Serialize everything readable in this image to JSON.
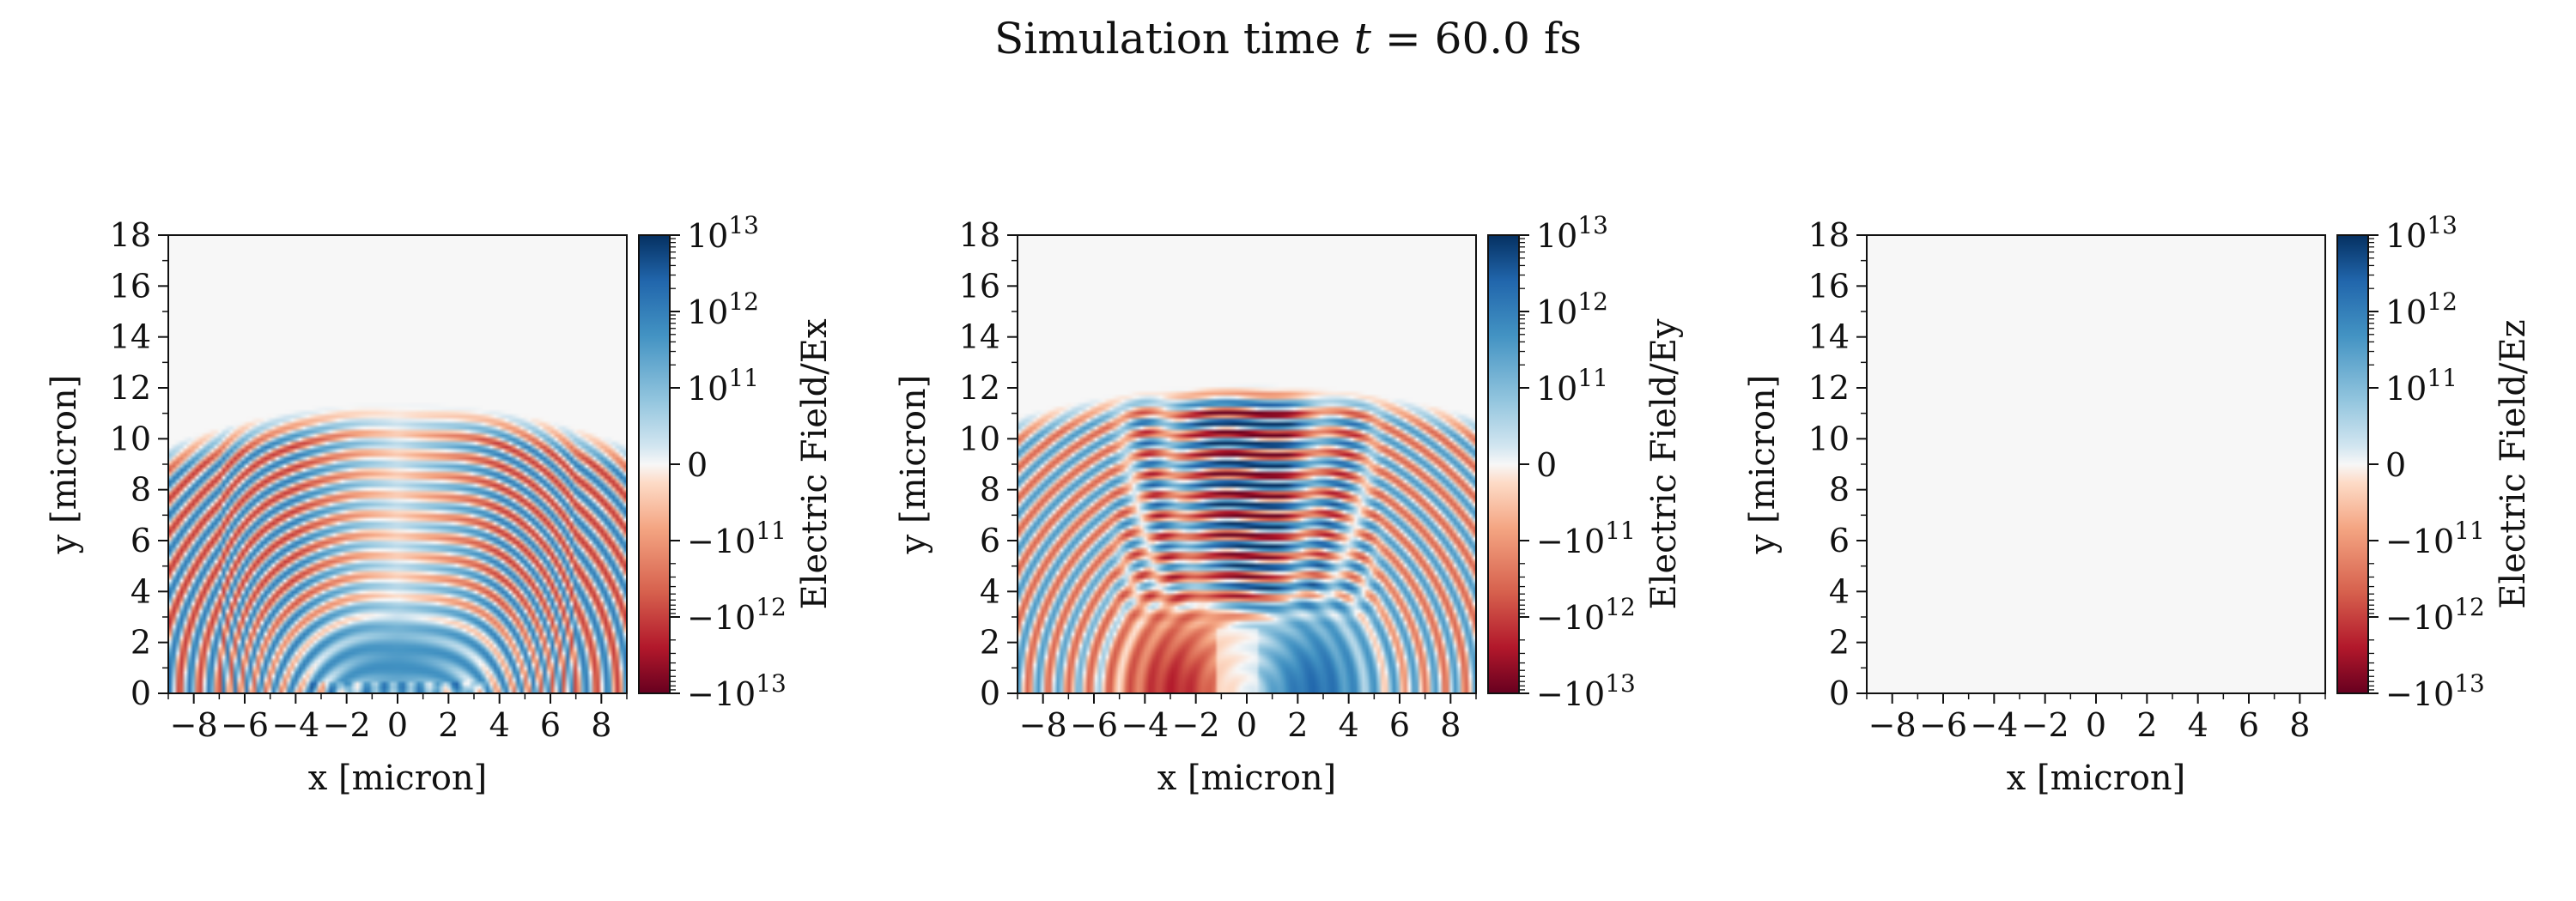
{
  "figure": {
    "suptitle_prefix": "Simulation time ",
    "suptitle_var": "t",
    "suptitle_suffix": " = 60.0 fs"
  },
  "chart_data": [
    {
      "type": "heatmap",
      "xlabel": "x [micron]",
      "ylabel": "y [micron]",
      "xlim": [
        -9,
        9
      ],
      "ylim": [
        0,
        18
      ],
      "xticks": [
        -8,
        -6,
        -4,
        -2,
        0,
        2,
        4,
        6,
        8
      ],
      "yticks": [
        0,
        2,
        4,
        6,
        8,
        10,
        12,
        14,
        16,
        18
      ],
      "colorbar": {
        "label": "Electric Field/Ex",
        "scale": "symlog",
        "colormap": "RdBu",
        "ticks": [
          {
            "value": 10000000000000.0,
            "base": "10",
            "exp": "13"
          },
          {
            "value": 1000000000000.0,
            "base": "10",
            "exp": "12"
          },
          {
            "value": 100000000000.0,
            "base": "10",
            "exp": "11"
          },
          {
            "value": 0,
            "base": "0",
            "exp": ""
          },
          {
            "value": -100000000000.0,
            "base": "−10",
            "exp": "11"
          },
          {
            "value": -1000000000000.0,
            "base": "−10",
            "exp": "12"
          },
          {
            "value": -10000000000000.0,
            "base": "−10",
            "exp": "13"
          }
        ]
      },
      "field": {
        "component": "Ex",
        "front_y_max": 11,
        "wavelength": 0.8,
        "peak_magnitude": 1000000000000.0,
        "pattern": "curved wavefronts, alternating sign, strongest near sides"
      }
    },
    {
      "type": "heatmap",
      "xlabel": "x [micron]",
      "ylabel": "y [micron]",
      "xlim": [
        -9,
        9
      ],
      "ylim": [
        0,
        18
      ],
      "xticks": [
        -8,
        -6,
        -4,
        -2,
        0,
        2,
        4,
        6,
        8
      ],
      "yticks": [
        0,
        2,
        4,
        6,
        8,
        10,
        12,
        14,
        16,
        18
      ],
      "colorbar": {
        "label": "Electric Field/Ey",
        "scale": "symlog",
        "colormap": "RdBu",
        "ticks": [
          {
            "value": 10000000000000.0,
            "base": "10",
            "exp": "13"
          },
          {
            "value": 1000000000000.0,
            "base": "10",
            "exp": "12"
          },
          {
            "value": 100000000000.0,
            "base": "10",
            "exp": "11"
          },
          {
            "value": 0,
            "base": "0",
            "exp": ""
          },
          {
            "value": -100000000000.0,
            "base": "−10",
            "exp": "11"
          },
          {
            "value": -1000000000000.0,
            "base": "−10",
            "exp": "12"
          },
          {
            "value": -10000000000000.0,
            "base": "−10",
            "exp": "13"
          }
        ]
      },
      "field": {
        "component": "Ey",
        "front_y_max": 11.5,
        "wavelength": 0.8,
        "peak_magnitude": 10000000000000.0,
        "pattern": "flat wavefronts in center, strong alternating sign, negative lobe lower-left, positive lobe lower-right"
      }
    },
    {
      "type": "heatmap",
      "xlabel": "x [micron]",
      "ylabel": "y [micron]",
      "xlim": [
        -9,
        9
      ],
      "ylim": [
        0,
        18
      ],
      "xticks": [
        -8,
        -6,
        -4,
        -2,
        0,
        2,
        4,
        6,
        8
      ],
      "yticks": [
        0,
        2,
        4,
        6,
        8,
        10,
        12,
        14,
        16,
        18
      ],
      "colorbar": {
        "label": "Electric Field/Ez",
        "scale": "symlog",
        "colormap": "RdBu",
        "ticks": [
          {
            "value": 10000000000000.0,
            "base": "10",
            "exp": "13"
          },
          {
            "value": 1000000000000.0,
            "base": "10",
            "exp": "12"
          },
          {
            "value": 100000000000.0,
            "base": "10",
            "exp": "11"
          },
          {
            "value": 0,
            "base": "0",
            "exp": ""
          },
          {
            "value": -100000000000.0,
            "base": "−10",
            "exp": "11"
          },
          {
            "value": -1000000000000.0,
            "base": "−10",
            "exp": "12"
          },
          {
            "value": -10000000000000.0,
            "base": "−10",
            "exp": "13"
          }
        ]
      },
      "field": {
        "component": "Ez",
        "front_y_max": 0,
        "wavelength": 0.8,
        "peak_magnitude": 0,
        "pattern": "uniform zero"
      }
    }
  ]
}
